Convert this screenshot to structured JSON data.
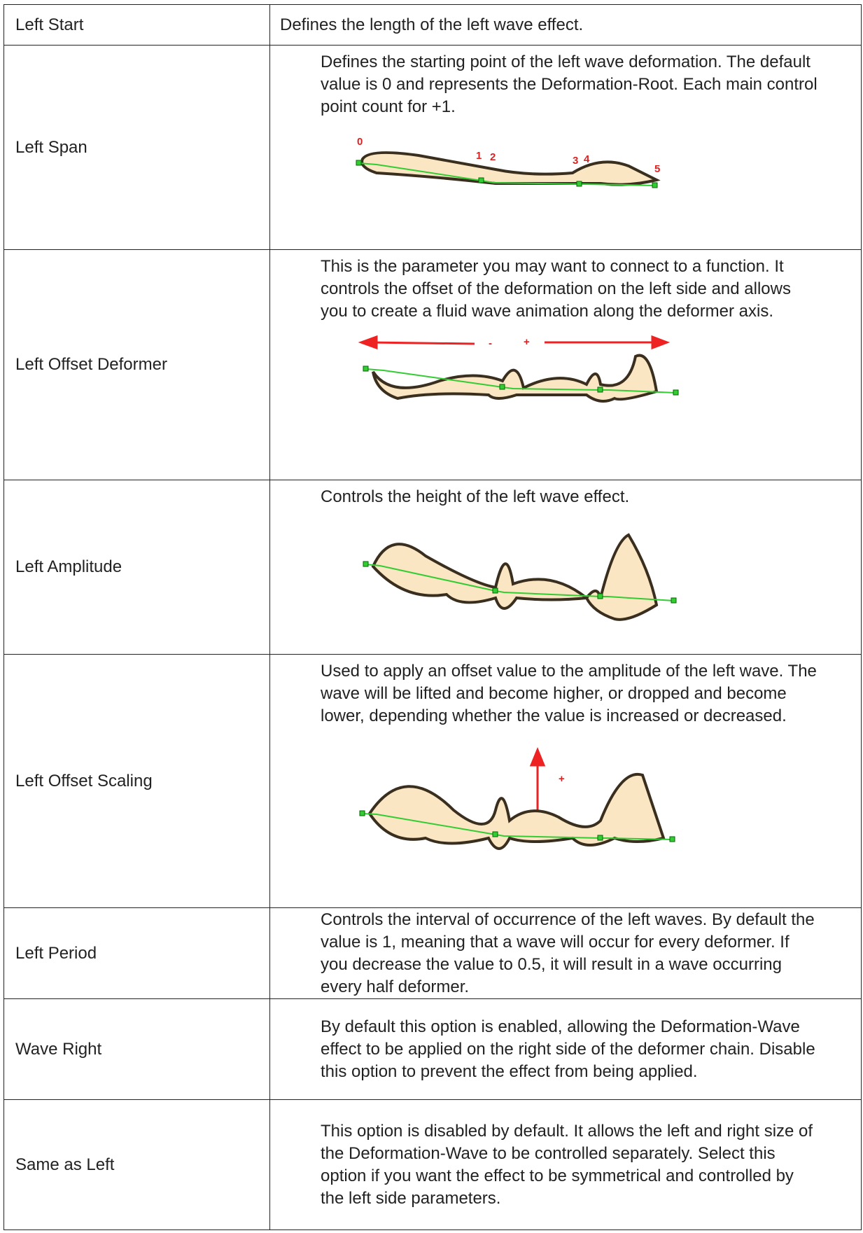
{
  "table": {
    "rows": [
      {
        "parameter": "Left Start",
        "description": "Defines the length of the left wave effect."
      },
      {
        "parameter": "Left Span",
        "description": "Defines the starting point of the left wave deformation. The default value is 0 and represents the Deformation-Root. Each main control point count for +1.",
        "figure_labels": [
          "0",
          "1",
          "2",
          "3",
          "4",
          "5"
        ]
      },
      {
        "parameter": "Left Offset Deformer",
        "description": "This is the parameter you may want to connect to a function. It controls the offset of the deformation on the left side and allows you to create a fluid wave animation along the deformer axis.",
        "figure_labels": [
          "-",
          "+"
        ]
      },
      {
        "parameter": "Left Amplitude",
        "description": "Controls the height of the left wave effect."
      },
      {
        "parameter": "Left Offset Scaling",
        "description": "Used to apply an offset value to the amplitude of the left wave. The wave will be lifted and become higher, or dropped and become lower, depending whether the value is increased or decreased.",
        "figure_labels": [
          "+"
        ]
      },
      {
        "parameter": "Left Period",
        "description": "Controls the interval of occurrence of the left waves. By default the value is 1, meaning that a wave will occur for every deformer. If you decrease the value to 0.5, it will result in a wave occurring every half deformer."
      },
      {
        "parameter": "Wave Right",
        "description": "By default this option is enabled, allowing the Deformation-Wave effect to be applied on the right side of the deformer chain. Disable this option to prevent the effect from being applied."
      },
      {
        "parameter": "Same as Left",
        "description": "This option is disabled by default. It allows the left and right size of the Deformation-Wave to be controlled separately. Select this option if you want the effect to be symmetrical and controlled by the left side parameters."
      }
    ]
  }
}
